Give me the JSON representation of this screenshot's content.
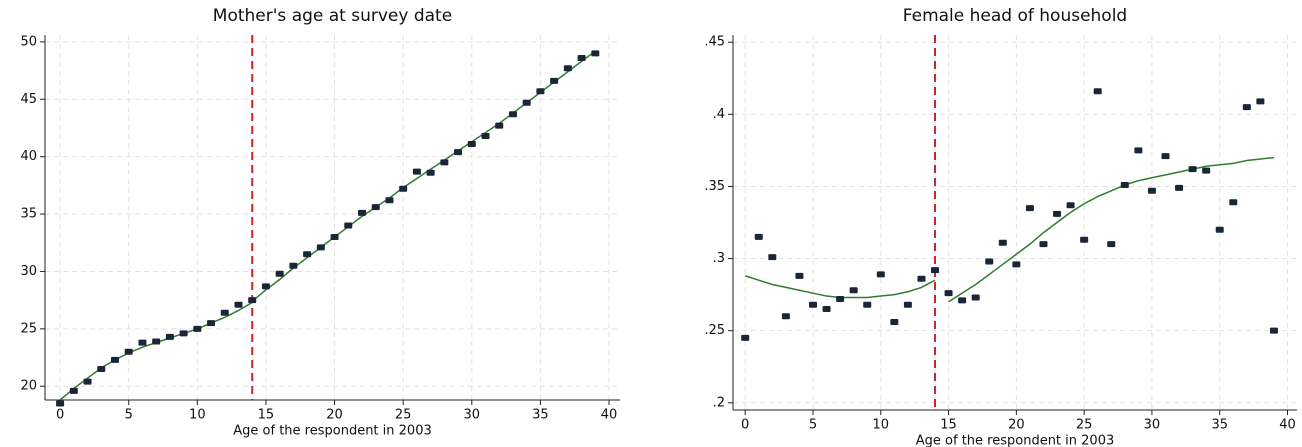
{
  "chart_data": [
    {
      "type": "scatter",
      "title": "Mother's age at survey date",
      "x_label": "Age of the respondent in 2003",
      "x": [
        0,
        1,
        2,
        3,
        4,
        5,
        6,
        7,
        8,
        9,
        10,
        11,
        12,
        13,
        14,
        15,
        16,
        17,
        18,
        19,
        20,
        21,
        22,
        23,
        24,
        25,
        26,
        27,
        28,
        29,
        30,
        31,
        32,
        33,
        34,
        35,
        36,
        37,
        38,
        39
      ],
      "values": [
        18.5,
        19.6,
        20.4,
        21.5,
        22.3,
        23.0,
        23.8,
        23.9,
        24.3,
        24.6,
        25.0,
        25.5,
        26.4,
        27.1,
        27.5,
        28.7,
        29.8,
        30.5,
        31.5,
        32.1,
        33.0,
        34.0,
        35.1,
        35.6,
        36.2,
        37.2,
        38.7,
        38.6,
        39.5,
        40.4,
        41.1,
        41.8,
        42.7,
        43.7,
        44.7,
        45.7,
        46.6,
        47.7,
        48.6,
        49.0
      ],
      "color": "#1a2638",
      "fits": [
        {
          "x": [
            0,
            1,
            2,
            3,
            4,
            5,
            6,
            7,
            8,
            9,
            10,
            11,
            12,
            13,
            14
          ],
          "values": [
            18.8,
            19.8,
            20.7,
            21.6,
            22.3,
            22.9,
            23.4,
            23.8,
            24.2,
            24.6,
            25.0,
            25.5,
            26.0,
            26.6,
            27.3
          ]
        },
        {
          "x": [
            14,
            15,
            16,
            17,
            18,
            19,
            20,
            21,
            22,
            23,
            24,
            25,
            26,
            27,
            28,
            29,
            30,
            31,
            32,
            33,
            34,
            35,
            36,
            37,
            38,
            39
          ],
          "values": [
            27.4,
            28.4,
            29.3,
            30.3,
            31.2,
            32.1,
            33.0,
            33.9,
            34.8,
            35.6,
            36.4,
            37.3,
            38.1,
            38.9,
            39.7,
            40.5,
            41.3,
            42.1,
            42.9,
            43.8,
            44.7,
            45.6,
            46.5,
            47.4,
            48.3,
            49.2
          ]
        }
      ],
      "fit_color": "#2e7d32",
      "vline": 14,
      "vline_color": "#c62828",
      "xlim": [
        -1.1,
        40.8
      ],
      "xticks": [
        0,
        5,
        10,
        15,
        20,
        25,
        30,
        35,
        40
      ],
      "ylim": [
        18.8,
        50.6
      ],
      "yticks": [
        20,
        25,
        30,
        35,
        40,
        45,
        50
      ],
      "grid": true
    },
    {
      "type": "scatter",
      "title": "Female head of household",
      "x_label": "Age of the respondent in 2003",
      "x": [
        0,
        1,
        2,
        3,
        4,
        5,
        6,
        7,
        8,
        9,
        10,
        11,
        12,
        13,
        14,
        15,
        16,
        17,
        18,
        19,
        20,
        21,
        22,
        23,
        24,
        25,
        26,
        27,
        28,
        29,
        30,
        31,
        32,
        33,
        34,
        35,
        36,
        37,
        38,
        39
      ],
      "values": [
        0.245,
        0.315,
        0.301,
        0.26,
        0.288,
        0.268,
        0.265,
        0.272,
        0.278,
        0.268,
        0.289,
        0.256,
        0.268,
        0.286,
        0.292,
        0.276,
        0.271,
        0.273,
        0.298,
        0.311,
        0.296,
        0.335,
        0.31,
        0.331,
        0.337,
        0.313,
        0.416,
        0.31,
        0.351,
        0.375,
        0.347,
        0.371,
        0.349,
        0.362,
        0.361,
        0.32,
        0.339,
        0.405,
        0.409,
        0.25
      ],
      "color": "#1a2638",
      "fits": [
        {
          "x": [
            0,
            1,
            2,
            3,
            4,
            5,
            6,
            7,
            8,
            9,
            10,
            11,
            12,
            13,
            14
          ],
          "values": [
            0.288,
            0.285,
            0.282,
            0.28,
            0.278,
            0.276,
            0.274,
            0.273,
            0.273,
            0.273,
            0.274,
            0.275,
            0.277,
            0.28,
            0.285
          ]
        },
        {
          "x": [
            15,
            16,
            17,
            18,
            19,
            20,
            21,
            22,
            23,
            24,
            25,
            26,
            27,
            28,
            29,
            30,
            31,
            32,
            33,
            34,
            35,
            36,
            37,
            38,
            39
          ],
          "values": [
            0.27,
            0.276,
            0.282,
            0.289,
            0.296,
            0.303,
            0.31,
            0.318,
            0.325,
            0.332,
            0.338,
            0.343,
            0.347,
            0.351,
            0.354,
            0.356,
            0.358,
            0.36,
            0.362,
            0.364,
            0.365,
            0.366,
            0.368,
            0.369,
            0.37
          ]
        }
      ],
      "fit_color": "#2e7d32",
      "vline": 14,
      "vline_color": "#c62828",
      "xlim": [
        -0.9,
        40.7
      ],
      "xticks": [
        0,
        5,
        10,
        15,
        20,
        25,
        30,
        35,
        40
      ],
      "ylim": [
        0.195,
        0.455
      ],
      "yticks": [
        {
          "value": 0.2,
          "label": ".2"
        },
        {
          "value": 0.25,
          "label": ".25"
        },
        {
          "value": 0.3,
          "label": ".3"
        },
        {
          "value": 0.35,
          "label": ".35"
        },
        {
          "value": 0.4,
          "label": ".4"
        },
        {
          "value": 0.45,
          "label": ".45"
        }
      ],
      "grid": true
    }
  ]
}
